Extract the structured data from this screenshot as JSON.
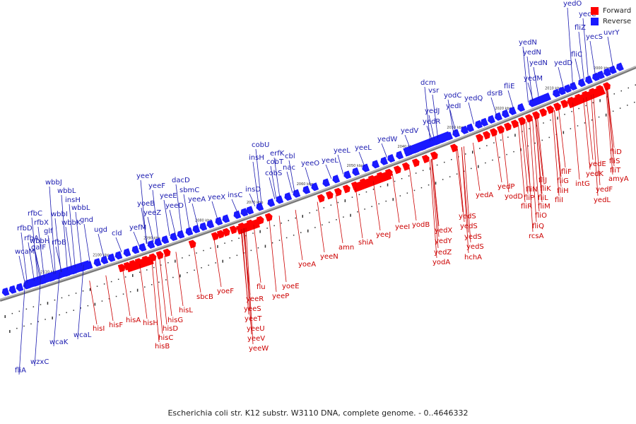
{
  "caption": "Escherichia coli str. K12 substr. W3110 DNA, complete genome. - 0..4646332",
  "legend": {
    "forward_label": "Forward",
    "reverse_label": "Reverse",
    "forward_color": "#ff0000",
    "reverse_color": "#1a1aff"
  },
  "colors": {
    "forward_text": "#cc0000",
    "reverse_text": "#1a1ab0",
    "axis": "#888888"
  },
  "ticks": [
    "2000 kbp",
    "2010 kbp",
    "2020 kbp",
    "2030 kbp",
    "2040 kbp",
    "2050 kbp",
    "2060 kbp",
    "2070 kbp",
    "2080 kbp",
    "2090 kbp",
    "2100 kbp",
    "2110 kbp"
  ],
  "reverse_genes": [
    "yedO",
    "yecC",
    "fliZ",
    "yecS",
    "uvrY",
    "yedN",
    "yedN",
    "yedN",
    "yedM",
    "fliE",
    "yedD",
    "fliC",
    "dcm",
    "vsr",
    "yodC",
    "yedI",
    "yedQ",
    "dsrB",
    "yedJ",
    "yedR",
    "yedW",
    "yedV",
    "yeeL",
    "yeeL",
    "yeeL",
    "yeeO",
    "erfK",
    "cbl",
    "nac",
    "cobT",
    "cobS",
    "cobU",
    "insH",
    "insD",
    "insC",
    "yeeY",
    "yeeF",
    "yeeE",
    "yeeD",
    "dacD",
    "sbmC",
    "yeeA",
    "yeeX",
    "yoeB",
    "yeeZ",
    "yefM",
    "cld",
    "ugd",
    "gnd",
    "wbbL",
    "wbbK",
    "wbbI",
    "wbbJ",
    "wbbL",
    "insH",
    "rfbC",
    "rfbX",
    "glf",
    "wbbH",
    "rfbB",
    "rfbD",
    "rfbA",
    "galF",
    "wcaM",
    "wcaL",
    "wcaK",
    "wzxC",
    "fliA"
  ],
  "forward_genes": [
    "fliD",
    "fliS",
    "fliT",
    "amyA",
    "yedE",
    "yedK",
    "yedF",
    "yedL",
    "intG",
    "fliF",
    "fliG",
    "fliH",
    "fliI",
    "fliJ",
    "fliK",
    "fliL",
    "fliM",
    "fliN",
    "fliO",
    "fliP",
    "fliQ",
    "fliR",
    "rcsA",
    "yedP",
    "yodD",
    "yedA",
    "yedS",
    "yedS",
    "yedS",
    "yedS",
    "hchA",
    "yodB",
    "yedX",
    "yedY",
    "yedZ",
    "yodA",
    "yeeI",
    "yeeJ",
    "shiA",
    "amn",
    "yeeN",
    "yoeA",
    "yoeE",
    "yeeP",
    "flu",
    "yoeF",
    "yeeR",
    "yeeS",
    "yeeT",
    "yeeU",
    "yeeV",
    "yeeW",
    "sbcB",
    "hisL",
    "hisG",
    "hisD",
    "hisC",
    "hisB",
    "hisH",
    "hisA",
    "hisF",
    "hisI"
  ]
}
